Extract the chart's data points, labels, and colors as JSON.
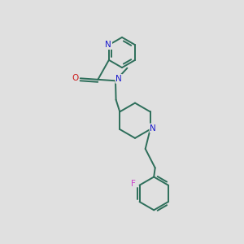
{
  "background_color": "#e0e0e0",
  "bond_color": "#2d6e5a",
  "nitrogen_color": "#1a1acc",
  "oxygen_color": "#cc1a1a",
  "fluorine_color": "#cc44cc",
  "bond_width": 1.4,
  "figsize": [
    3.0,
    3.0
  ],
  "dpi": 100,
  "xlim": [
    0,
    10
  ],
  "ylim": [
    0,
    10
  ]
}
